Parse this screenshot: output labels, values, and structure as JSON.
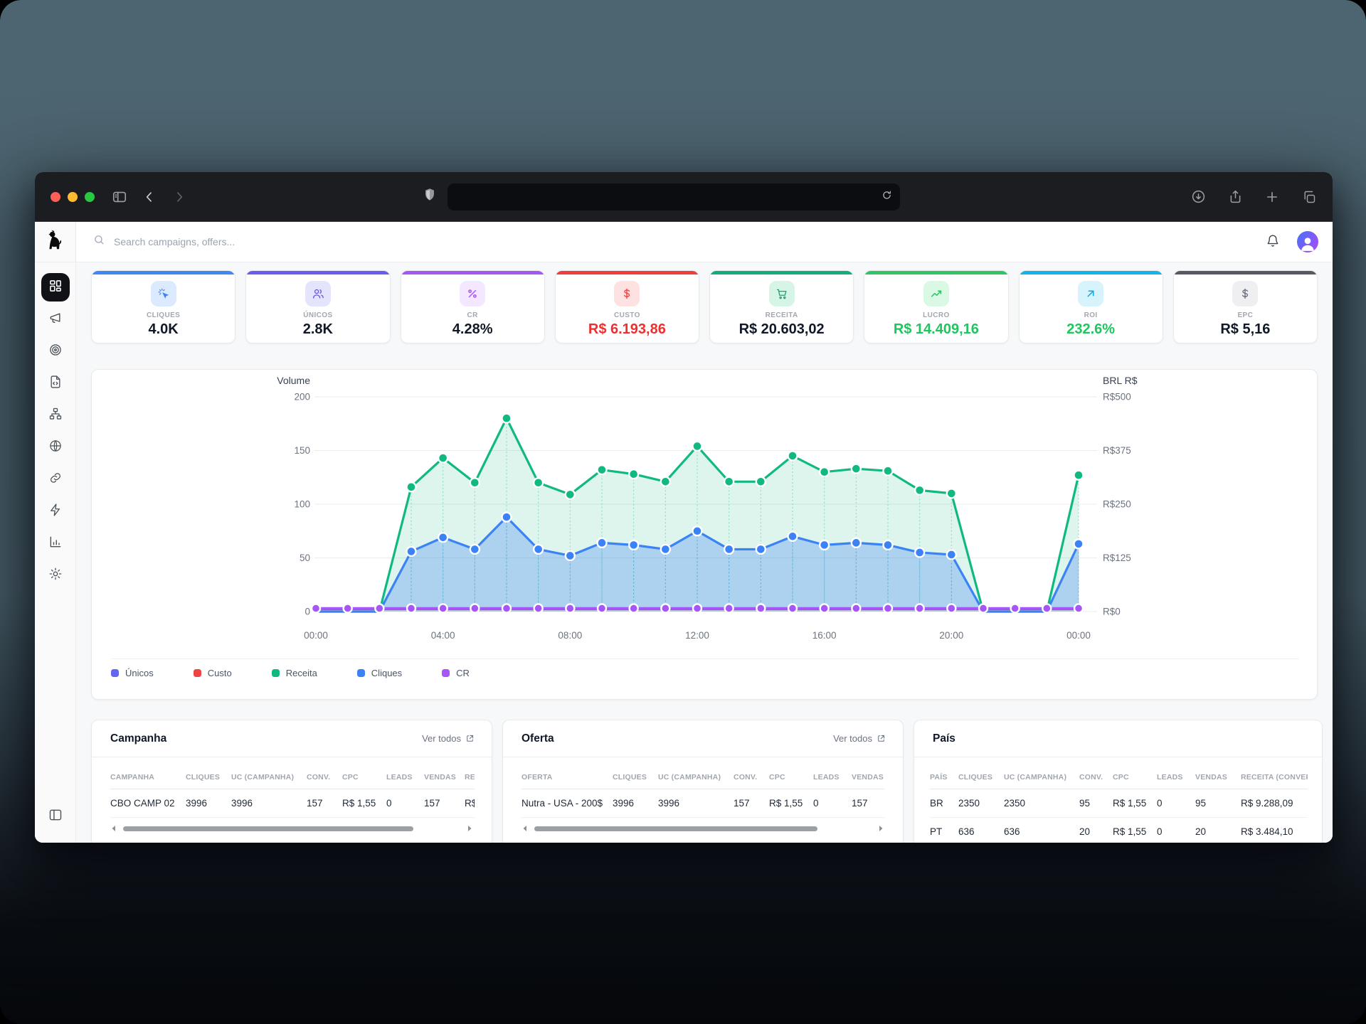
{
  "desktop": {
    "background": "#4c6470"
  },
  "browser": {
    "traffic_lights": [
      "#ff5f57",
      "#febc2e",
      "#28c840"
    ],
    "left_icons": [
      "sidebar-toggle",
      "chevron-left",
      "chevron-right"
    ],
    "url_icons": [
      "shield",
      "reload"
    ],
    "url_value": "",
    "right_icons": [
      "download",
      "share",
      "plus",
      "tabs"
    ]
  },
  "header": {
    "logo_icon": "dog-logo",
    "search_icon": "search",
    "search_placeholder": "Search campaigns, offers...",
    "right_icons": [
      "bell",
      "avatar"
    ]
  },
  "sidebar": {
    "items": [
      {
        "icon": "dashboard",
        "active": true
      },
      {
        "icon": "megaphone",
        "active": false
      },
      {
        "icon": "target",
        "active": false
      },
      {
        "icon": "file-code",
        "active": false
      },
      {
        "icon": "sitemap",
        "active": false
      },
      {
        "icon": "globe",
        "active": false
      },
      {
        "icon": "link",
        "active": false
      },
      {
        "icon": "zap",
        "active": false
      },
      {
        "icon": "bar-chart",
        "active": false
      },
      {
        "icon": "settings",
        "active": false
      }
    ],
    "bottom_icon": "panel-left"
  },
  "kpis": [
    {
      "id": "cliques",
      "label": "CLIQUES",
      "value": "4.0K",
      "accent": "#3e87f7",
      "chip_bg": "#dbeafe",
      "icon": "cursor-click",
      "icon_color": "#3b82f6",
      "value_color": "#111827"
    },
    {
      "id": "unicos",
      "label": "ÚNICOS",
      "value": "2.8K",
      "accent": "#6a5cf0",
      "chip_bg": "#e4e4fd",
      "icon": "users",
      "icon_color": "#6658f0",
      "value_color": "#111827"
    },
    {
      "id": "cr",
      "label": "CR",
      "value": "4.28%",
      "accent": "#a855f7",
      "chip_bg": "#f3e8ff",
      "icon": "percent",
      "icon_color": "#a855f7",
      "value_color": "#111827"
    },
    {
      "id": "custo",
      "label": "CUSTO",
      "value": "R$ 6.193,86",
      "accent": "#f23d3d",
      "chip_bg": "#fee2e2",
      "icon": "dollar",
      "icon_color": "#ef4444",
      "value_color": "#ef2f2f"
    },
    {
      "id": "receita",
      "label": "RECEITA",
      "value": "R$ 20.603,02",
      "accent": "#13ab80",
      "chip_bg": "#d6f5e7",
      "icon": "cart",
      "icon_color": "#10a975",
      "value_color": "#111827"
    },
    {
      "id": "lucro",
      "label": "LUCRO",
      "value": "R$ 14.409,16",
      "accent": "#2fc764",
      "chip_bg": "#d9f9e5",
      "icon": "trending-up",
      "icon_color": "#22c55e",
      "value_color": "#1fc55f"
    },
    {
      "id": "roi",
      "label": "ROI",
      "value": "232.6%",
      "accent": "#12b5ea",
      "chip_bg": "#d7f3fc",
      "icon": "arrow-up-right",
      "icon_color": "#0ea5e9",
      "value_color": "#1fc55f"
    },
    {
      "id": "epc",
      "label": "EPC",
      "value": "R$ 5,16",
      "accent": "#565b63",
      "chip_bg": "#efeff1",
      "icon": "dollar",
      "icon_color": "#6b7280",
      "value_color": "#111827"
    }
  ],
  "chart_data": {
    "type": "area",
    "x": [
      "00:00",
      "01:00",
      "02:00",
      "03:00",
      "04:00",
      "05:00",
      "06:00",
      "07:00",
      "08:00",
      "09:00",
      "10:00",
      "11:00",
      "12:00",
      "13:00",
      "14:00",
      "15:00",
      "16:00",
      "17:00",
      "18:00",
      "19:00",
      "20:00",
      "21:00",
      "22:00",
      "23:00",
      "00:00"
    ],
    "x_tick_indices": [
      0,
      4,
      8,
      12,
      16,
      20,
      24
    ],
    "left_axis": {
      "title": "Volume",
      "ticks": [
        0,
        50,
        100,
        150,
        200
      ],
      "range": [
        0,
        200
      ]
    },
    "right_axis": {
      "title": "BRL R$",
      "ticks": [
        "R$0",
        "R$125",
        "R$250",
        "R$375",
        "R$500"
      ]
    },
    "grid": true,
    "legend_position": "bottom-left",
    "series": [
      {
        "name": "Únicos",
        "color": "#6366f1",
        "width": 2,
        "dots": "none",
        "fill": null,
        "values": [
          2.2,
          2.2,
          2.2,
          2.2,
          2.2,
          2.2,
          2.2,
          2.2,
          2.2,
          2.2,
          2.2,
          2.2,
          2.2,
          2.2,
          2.2,
          2.2,
          2.2,
          2.2,
          2.2,
          2.2,
          2.2,
          2.2,
          2.2,
          2.2,
          2.2
        ]
      },
      {
        "name": "Custo",
        "color": "#ef4444",
        "width": 2.4,
        "dots": "none",
        "fill": null,
        "values": [
          2,
          2,
          2,
          2,
          2,
          2,
          2,
          2,
          2,
          2,
          2,
          2,
          2,
          2,
          2,
          2,
          2,
          2,
          2,
          2,
          2,
          2,
          2,
          2,
          2
        ]
      },
      {
        "name": "Receita",
        "color": "#10b981",
        "width": 3.2,
        "dots": "nonzero",
        "fill": "rgba(16,185,129,0.14)",
        "values": [
          0,
          0,
          0,
          116,
          143,
          120,
          180,
          120,
          109,
          132,
          128,
          121,
          154,
          121,
          121,
          145,
          130,
          133,
          131,
          113,
          110,
          0,
          0,
          0,
          127
        ]
      },
      {
        "name": "Cliques",
        "color": "#3b82f6",
        "width": 3.2,
        "dots": "nonzero",
        "fill": "rgba(59,130,246,0.30)",
        "values": [
          0,
          0,
          0,
          56,
          69,
          58,
          88,
          58,
          52,
          64,
          62,
          58,
          75,
          58,
          58,
          70,
          62,
          64,
          62,
          55,
          53,
          0,
          0,
          0,
          63
        ]
      },
      {
        "name": "CR",
        "color": "#a855f7",
        "width": 3.5,
        "dots": "all",
        "fill": null,
        "values": [
          3,
          3,
          3,
          3,
          3,
          3,
          3,
          3,
          3,
          3,
          3,
          3,
          3,
          3,
          3,
          3,
          3,
          3,
          3,
          3,
          3,
          3,
          3,
          3,
          3
        ]
      }
    ],
    "draw_order": [
      "Receita",
      "Cliques",
      "Únicos",
      "Custo",
      "CR"
    ],
    "legend_order": [
      "Únicos",
      "Custo",
      "Receita",
      "Cliques",
      "CR"
    ]
  },
  "tables": [
    {
      "id": "campanha",
      "title": "Campanha",
      "link_label": "Ver todos",
      "link_icon": "external-link",
      "headers": [
        "CAMPANHA",
        "CLIQUES",
        "UC (CAMPANHA)",
        "CONV.",
        "CPC",
        "LEADS",
        "VENDAS",
        "RECEITA"
      ],
      "rows": [
        [
          "CBO CAMP 02",
          "3996",
          "3996",
          "157",
          "R$ 1,55",
          "0",
          "157",
          "R$"
        ]
      ],
      "scrollbar": true,
      "thumb_ratio": 0.86
    },
    {
      "id": "oferta",
      "title": "Oferta",
      "link_label": "Ver todos",
      "link_icon": "external-link",
      "headers": [
        "OFERTA",
        "CLIQUES",
        "UC (CAMPANHA)",
        "CONV.",
        "CPC",
        "LEADS",
        "VENDAS"
      ],
      "rows": [
        [
          "Nutra - USA - 200$",
          "3996",
          "3996",
          "157",
          "R$ 1,55",
          "0",
          "157"
        ]
      ],
      "scrollbar": true,
      "thumb_ratio": 0.84
    },
    {
      "id": "pais",
      "title": "País",
      "link_label": "",
      "link_icon": "",
      "headers": [
        "PAÍS",
        "CLIQUES",
        "UC (CAMPANHA)",
        "CONV.",
        "CPC",
        "LEADS",
        "VENDAS",
        "RECEITA (CONVERTIDA)"
      ],
      "rows": [
        [
          "BR",
          "2350",
          "2350",
          "95",
          "R$ 1,55",
          "0",
          "95",
          "R$ 9.288,09"
        ],
        [
          "PT",
          "636",
          "636",
          "20",
          "R$ 1,55",
          "0",
          "20",
          "R$ 3.484,10"
        ]
      ],
      "scrollbar": false,
      "thumb_ratio": 0
    }
  ]
}
